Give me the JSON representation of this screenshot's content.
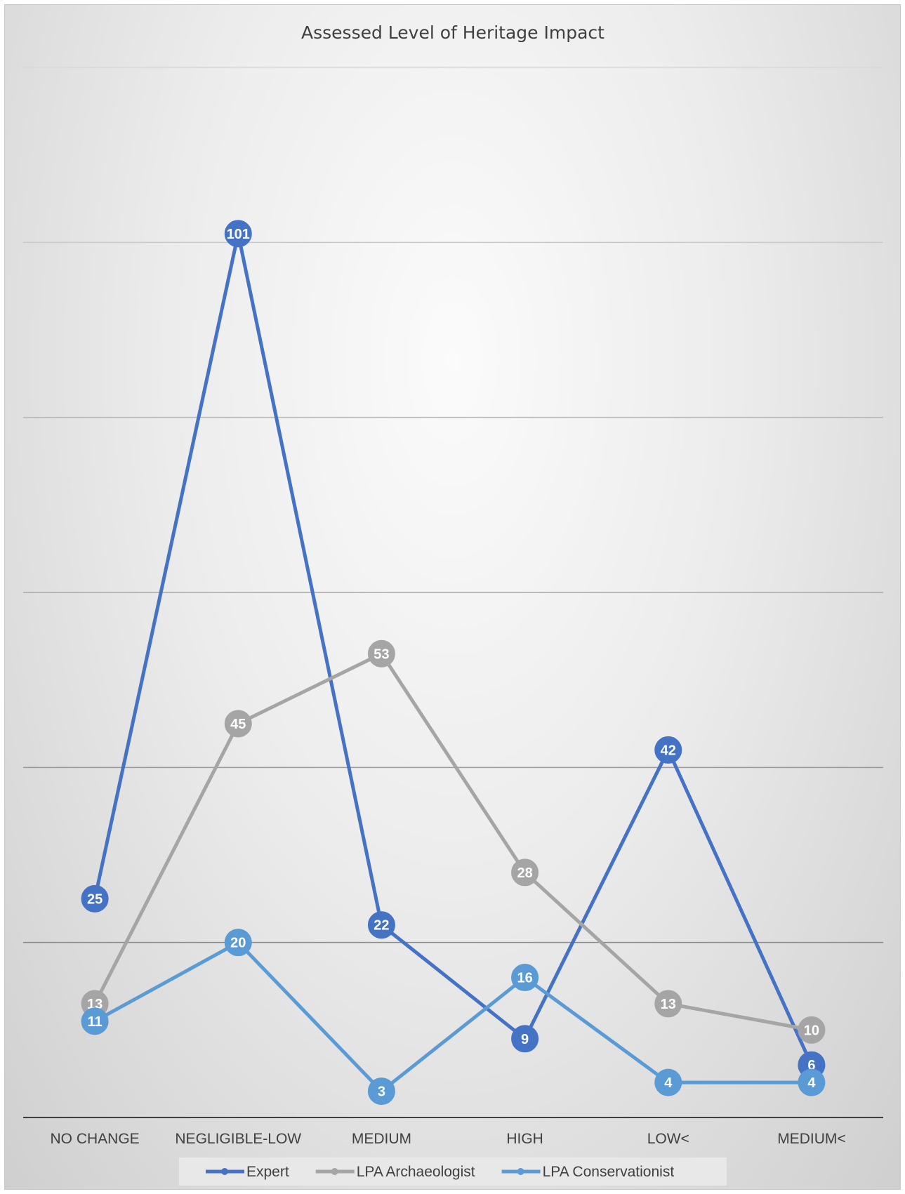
{
  "chart_data": {
    "type": "line",
    "title": "Assessed Level of Heritage Impact",
    "xlabel": "",
    "ylabel": "",
    "categories": [
      "NO CHANGE",
      "NEGLIGIBLE-LOW",
      "MEDIUM",
      "HIGH",
      "LOW<",
      "MEDIUM<"
    ],
    "series": [
      {
        "name": "Expert",
        "values": [
          25,
          101,
          22,
          9,
          42,
          6
        ],
        "color": "#4472c4"
      },
      {
        "name": "LPA Archaeologist",
        "values": [
          13,
          45,
          53,
          28,
          13,
          10
        ],
        "color": "#a5a5a5"
      },
      {
        "name": "LPA Conservationist",
        "values": [
          11,
          20,
          3,
          16,
          4,
          4
        ],
        "color": "#5b9bd5"
      }
    ],
    "ylim": [
      0,
      120
    ],
    "y_gridlines": [
      20,
      40,
      60,
      80,
      100,
      120
    ],
    "y_tick_labels_shown": false,
    "grid": true,
    "data_labels": true,
    "legend_position": "bottom"
  }
}
